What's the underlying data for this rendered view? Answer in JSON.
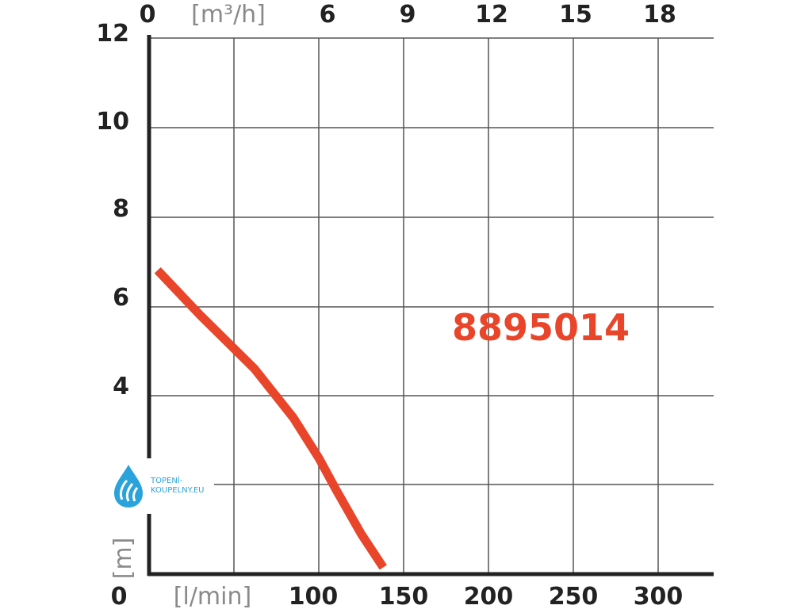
{
  "chart_data": {
    "type": "line",
    "xlabel": "[l/min]",
    "x2label": "[m³/h]",
    "ylabel": "[m]",
    "x_ticks": [
      "0",
      "100",
      "150",
      "200",
      "250",
      "300"
    ],
    "x2_ticks": [
      "0",
      "6",
      "9",
      "12",
      "15",
      "18"
    ],
    "y_ticks": [
      "12",
      "10",
      "8",
      "6",
      "4"
    ],
    "xlim": [
      0,
      330
    ],
    "ylim": [
      0,
      12
    ],
    "grid": true,
    "series": [
      {
        "name": "8895014",
        "color": "#e8452a",
        "x": [
          5,
          30,
          62,
          85,
          100,
          110,
          125,
          138
        ],
        "y": [
          6.8,
          5.8,
          4.6,
          3.5,
          2.6,
          1.9,
          0.9,
          0.15
        ]
      }
    ]
  },
  "logo": {
    "text_line1": "TOPENÍ-",
    "text_line2": "KOUPELNY.EU",
    "color": "#2aa3dc"
  },
  "colors": {
    "axis": "#222222",
    "grid": "#555555",
    "curve": "#e8452a",
    "unit": "#8a8a8a"
  }
}
